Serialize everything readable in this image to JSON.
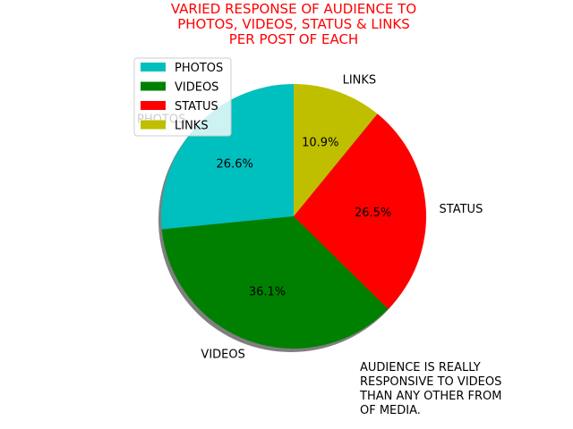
{
  "chart_data": {
    "type": "pie",
    "title": "VARIED RESPONSE OF AUDIENCE TO\nPHOTOS, VIDEOS, STATUS & LINKS\nPER POST OF EACH",
    "categories": [
      "PHOTOS",
      "VIDEOS",
      "STATUS",
      "LINKS"
    ],
    "values": [
      26.6,
      36.1,
      26.5,
      10.9
    ],
    "value_labels": [
      "26.6%",
      "36.1%",
      "26.5%",
      "10.9%"
    ],
    "colors": [
      "#00bfbf",
      "#008000",
      "#ff0000",
      "#bfbf00"
    ],
    "start_angle_deg": 90,
    "direction": "counterclockwise",
    "shadow": true,
    "legend": {
      "placement": "upper-left",
      "entries": [
        "PHOTOS",
        "VIDEOS",
        "STATUS",
        "LINKS"
      ]
    }
  },
  "annotation": "AUDIENCE IS REALLY\nRESPONSIVE TO VIDEOS\nTHAN ANY OTHER FROM\nOF MEDIA."
}
